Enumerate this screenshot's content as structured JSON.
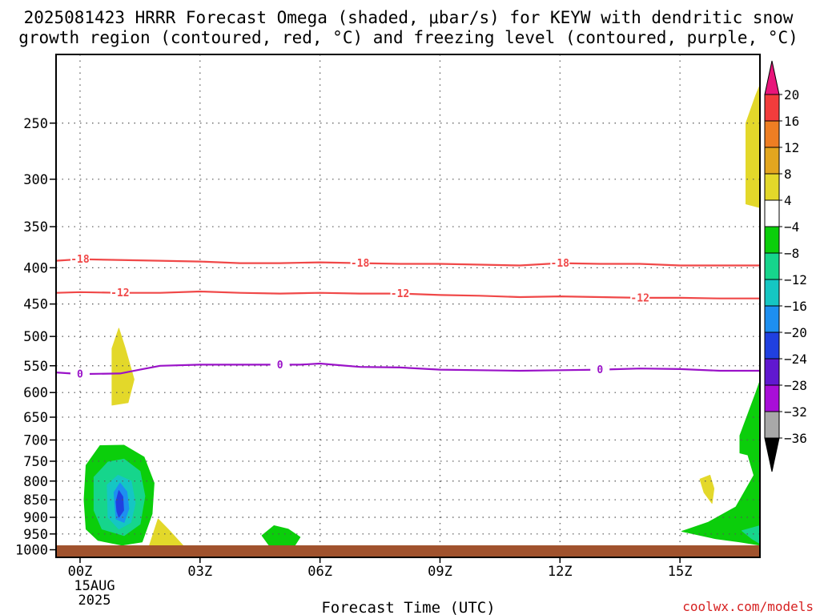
{
  "title_line1": "2025081423 HRRR Forecast Omega (shaded, μbar/s) for KEYW with dendritic snow",
  "title_line2": "growth region (contoured, red, °C) and freezing level (contoured, purple, °C)",
  "watermark": "coolwx.com/models",
  "chart_data": {
    "type": "contour",
    "xlabel": "Forecast Time (UTC)",
    "x_ticks": [
      {
        "hour": 0,
        "label": "00Z"
      },
      {
        "hour": 3,
        "label": "03Z"
      },
      {
        "hour": 6,
        "label": "06Z"
      },
      {
        "hour": 9,
        "label": "09Z"
      },
      {
        "hour": 12,
        "label": "12Z"
      },
      {
        "hour": 15,
        "label": "15Z"
      }
    ],
    "x_date_label": [
      "15AUG",
      "2025"
    ],
    "xlim_hours": [
      -0.6,
      17
    ],
    "y_ticks": [
      250,
      300,
      350,
      400,
      450,
      500,
      550,
      600,
      650,
      700,
      750,
      800,
      850,
      900,
      950,
      1000
    ],
    "ylim_hPa": [
      1025,
      200
    ],
    "y_scale": "log-pressure",
    "grid": true,
    "colorbar": {
      "labels": [
        "20",
        "16",
        "12",
        "8",
        "4",
        "−4",
        "−8",
        "−12",
        "−16",
        "−20",
        "−24",
        "−28",
        "−32",
        "−36"
      ],
      "top_triangle_color": "#e8157a",
      "bottom_triangle_color": "#000000",
      "bins": [
        {
          "from": 16,
          "to": 20,
          "color": "#f23c3c"
        },
        {
          "from": 12,
          "to": 16,
          "color": "#ee7e23"
        },
        {
          "from": 8,
          "to": 12,
          "color": "#e3a61f"
        },
        {
          "from": 4,
          "to": 8,
          "color": "#e3d82a"
        },
        {
          "from": -4,
          "to": 4,
          "color": "#ffffff"
        },
        {
          "from": -8,
          "to": -4,
          "color": "#0bce0b"
        },
        {
          "from": -12,
          "to": -8,
          "color": "#16d58c"
        },
        {
          "from": -16,
          "to": -12,
          "color": "#15c6c3"
        },
        {
          "from": -20,
          "to": -16,
          "color": "#1d8ff0"
        },
        {
          "from": -24,
          "to": -20,
          "color": "#2040e0"
        },
        {
          "from": -28,
          "to": -24,
          "color": "#6018d0"
        },
        {
          "from": -32,
          "to": -28,
          "color": "#a80ed8"
        },
        {
          "from": -36,
          "to": -32,
          "color": "#a8a8a8"
        }
      ]
    },
    "contours": [
      {
        "name": "-18",
        "color": "#f04848",
        "points": [
          [
            -0.6,
            391
          ],
          [
            0,
            389
          ],
          [
            2,
            391
          ],
          [
            3,
            392
          ],
          [
            4,
            394
          ],
          [
            5,
            394
          ],
          [
            6,
            393
          ],
          [
            7,
            394
          ],
          [
            8,
            395
          ],
          [
            9,
            395
          ],
          [
            10,
            396
          ],
          [
            11,
            397
          ],
          [
            12,
            394
          ],
          [
            13,
            395
          ],
          [
            14,
            395
          ],
          [
            15,
            397
          ],
          [
            16,
            397
          ],
          [
            17,
            397
          ]
        ],
        "labels": [
          [
            0,
            389
          ],
          [
            7,
            394
          ],
          [
            12,
            394
          ]
        ]
      },
      {
        "name": "-12",
        "color": "#f04848",
        "points": [
          [
            -0.6,
            434
          ],
          [
            0,
            433
          ],
          [
            1,
            434
          ],
          [
            2,
            434
          ],
          [
            3,
            432
          ],
          [
            4,
            434
          ],
          [
            5,
            435
          ],
          [
            6,
            434
          ],
          [
            7,
            435
          ],
          [
            8,
            435
          ],
          [
            9,
            437
          ],
          [
            10,
            438
          ],
          [
            11,
            440
          ],
          [
            12,
            439
          ],
          [
            13,
            440
          ],
          [
            14,
            441
          ],
          [
            15,
            441
          ],
          [
            16,
            442
          ],
          [
            17,
            442
          ]
        ],
        "labels": [
          [
            1,
            434
          ],
          [
            8,
            435
          ],
          [
            14,
            441
          ]
        ]
      },
      {
        "name": "0",
        "color": "#9a12c8",
        "points": [
          [
            -0.6,
            562
          ],
          [
            0,
            565
          ],
          [
            1,
            564
          ],
          [
            1.5,
            557
          ],
          [
            2,
            550
          ],
          [
            3,
            548
          ],
          [
            4,
            548
          ],
          [
            5,
            548
          ],
          [
            5.5,
            548
          ],
          [
            6,
            546
          ],
          [
            6.5,
            549
          ],
          [
            7,
            552
          ],
          [
            8,
            553
          ],
          [
            9,
            557
          ],
          [
            10,
            558
          ],
          [
            11,
            559
          ],
          [
            12,
            558
          ],
          [
            13,
            557
          ],
          [
            14,
            555
          ],
          [
            15,
            556
          ],
          [
            16,
            559
          ],
          [
            17,
            559
          ]
        ],
        "labels": [
          [
            0,
            565
          ],
          [
            5,
            548
          ],
          [
            13,
            557
          ]
        ]
      }
    ],
    "omega_regions": [
      {
        "value": 4,
        "color": "#e3d82a",
        "points": [
          [
            0.8,
            625
          ],
          [
            0.8,
            520
          ],
          [
            0.97,
            487
          ],
          [
            1.13,
            520
          ],
          [
            1.35,
            575
          ],
          [
            1.2,
            620
          ]
        ]
      },
      {
        "value": 4,
        "color": "#e3d82a",
        "points": [
          [
            1.7,
            1000
          ],
          [
            1.95,
            905
          ],
          [
            2.2,
            935
          ],
          [
            2.6,
            990
          ],
          [
            2.4,
            1005
          ]
        ]
      },
      {
        "value": 4,
        "color": "#e3d82a",
        "points": [
          [
            16.65,
            325
          ],
          [
            16.65,
            250
          ],
          [
            16.9,
            228
          ],
          [
            17,
            221
          ],
          [
            17,
            329
          ]
        ]
      },
      {
        "value": 4,
        "color": "#e3d82a",
        "points": [
          [
            15.5,
            795
          ],
          [
            15.75,
            785
          ],
          [
            15.85,
            820
          ],
          [
            15.8,
            860
          ],
          [
            15.6,
            830
          ]
        ]
      },
      {
        "value": -4,
        "color": "#0bce0b",
        "points": [
          [
            0.15,
            760
          ],
          [
            0.5,
            713
          ],
          [
            1.1,
            712
          ],
          [
            1.6,
            740
          ],
          [
            1.85,
            805
          ],
          [
            1.8,
            890
          ],
          [
            1.55,
            975
          ],
          [
            1.05,
            985
          ],
          [
            0.45,
            970
          ],
          [
            0.15,
            935
          ],
          [
            0.1,
            850
          ]
        ]
      },
      {
        "value": -8,
        "color": "#16d58c",
        "points": [
          [
            0.35,
            790
          ],
          [
            0.7,
            752
          ],
          [
            1.1,
            745
          ],
          [
            1.5,
            775
          ],
          [
            1.62,
            840
          ],
          [
            1.5,
            920
          ],
          [
            1.1,
            955
          ],
          [
            0.55,
            935
          ],
          [
            0.35,
            880
          ]
        ]
      },
      {
        "value": -12,
        "color": "#15c6c3",
        "points": [
          [
            0.68,
            810
          ],
          [
            0.95,
            785
          ],
          [
            1.28,
            800
          ],
          [
            1.38,
            860
          ],
          [
            1.27,
            915
          ],
          [
            0.97,
            935
          ],
          [
            0.7,
            900
          ]
        ]
      },
      {
        "value": -16,
        "color": "#1d8ff0",
        "points": [
          [
            0.85,
            830
          ],
          [
            1.0,
            805
          ],
          [
            1.17,
            828
          ],
          [
            1.22,
            875
          ],
          [
            1.1,
            915
          ],
          [
            0.9,
            905
          ]
        ]
      },
      {
        "value": -20,
        "color": "#2040e0",
        "points": [
          [
            0.9,
            855
          ],
          [
            0.97,
            825
          ],
          [
            1.07,
            842
          ],
          [
            1.09,
            880
          ],
          [
            0.97,
            900
          ],
          [
            0.92,
            882
          ]
        ]
      },
      {
        "value": -4,
        "color": "#0bce0b",
        "points": [
          [
            4.55,
            955
          ],
          [
            4.85,
            925
          ],
          [
            5.2,
            935
          ],
          [
            5.5,
            960
          ],
          [
            5.35,
            990
          ],
          [
            4.75,
            990
          ]
        ]
      },
      {
        "value": -4,
        "color": "#0bce0b",
        "points": [
          [
            16.5,
            730
          ],
          [
            16.5,
            690
          ],
          [
            16.9,
            600
          ],
          [
            17,
            578
          ],
          [
            17,
            985
          ],
          [
            16.5,
            975
          ],
          [
            15.9,
            965
          ],
          [
            15.05,
            942
          ],
          [
            15.7,
            915
          ],
          [
            16.4,
            870
          ],
          [
            16.85,
            785
          ],
          [
            16.7,
            735
          ]
        ]
      },
      {
        "value": -8,
        "color": "#16d58c",
        "points": [
          [
            16.55,
            940
          ],
          [
            16.85,
            930
          ],
          [
            17,
            925
          ],
          [
            17,
            980
          ],
          [
            16.8,
            965
          ]
        ]
      }
    ]
  }
}
